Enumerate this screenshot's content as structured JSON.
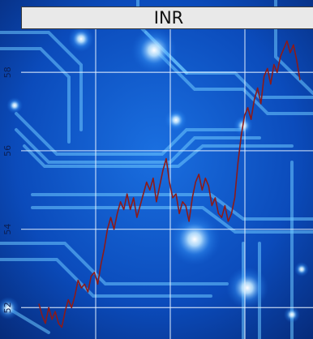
{
  "chart_data": {
    "type": "line",
    "title": "INR",
    "xlabel": "",
    "ylabel": "",
    "y_tick_labels": [
      "52",
      "54",
      "56",
      "58"
    ],
    "ylim": [
      51.2,
      59.1
    ],
    "x_gridlines": 3,
    "grid": true,
    "series": [
      {
        "color": "#8b1a1a",
        "x": [
          0,
          5,
          10,
          15,
          20,
          25,
          30,
          35,
          40,
          45,
          50,
          55,
          60,
          65,
          70,
          75,
          80,
          85,
          90,
          95,
          100,
          105,
          110,
          115,
          120,
          125,
          130,
          135,
          140,
          145,
          150,
          155,
          160,
          165,
          170,
          175,
          180,
          185,
          190,
          195,
          200,
          205,
          210,
          215,
          220,
          225,
          230,
          235,
          240,
          245,
          250,
          255,
          260,
          265,
          270,
          275,
          280,
          285,
          290,
          295,
          300,
          305,
          310,
          315,
          320,
          325,
          330,
          335,
          340,
          345,
          350,
          355,
          360,
          365,
          370,
          375,
          380,
          385,
          390,
          395,
          400
        ],
        "values": [
          52.1,
          51.8,
          51.6,
          52.0,
          51.7,
          51.9,
          51.6,
          51.5,
          51.9,
          52.2,
          52.0,
          52.3,
          52.7,
          52.5,
          52.6,
          52.4,
          52.8,
          52.9,
          52.6,
          53.1,
          53.5,
          54.0,
          54.3,
          54.0,
          54.4,
          54.7,
          54.5,
          54.9,
          54.5,
          54.8,
          54.3,
          54.6,
          54.9,
          55.2,
          55.0,
          55.3,
          54.7,
          55.1,
          55.5,
          55.8,
          55.2,
          54.8,
          54.9,
          54.4,
          54.7,
          54.6,
          54.2,
          54.8,
          55.2,
          55.4,
          55.0,
          55.3,
          55.1,
          54.6,
          54.8,
          54.4,
          54.3,
          54.6,
          54.2,
          54.4,
          54.8,
          55.7,
          56.4,
          56.9,
          57.1,
          56.8,
          57.3,
          57.6,
          57.2,
          57.9,
          58.1,
          57.7,
          58.2,
          58.0,
          58.4,
          58.6,
          58.8,
          58.5,
          58.7,
          58.3,
          57.8
        ]
      }
    ]
  }
}
